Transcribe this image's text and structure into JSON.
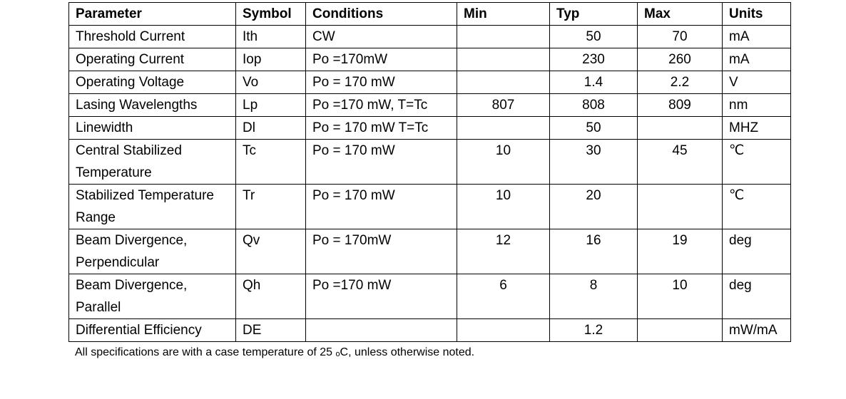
{
  "table": {
    "headers": [
      "Parameter",
      "Symbol",
      "Conditions",
      "Min",
      "Typ",
      "Max",
      "Units"
    ],
    "rows": [
      {
        "parameter": "Threshold Current",
        "symbol": "Ith",
        "conditions": "CW",
        "min": "",
        "typ": "50",
        "max": "70",
        "units": "mA"
      },
      {
        "parameter": "Operating Current",
        "symbol": "Iop",
        "conditions": "Po =170mW",
        "min": "",
        "typ": "230",
        "max": "260",
        "units": "mA"
      },
      {
        "parameter": "Operating Voltage",
        "symbol": "Vo",
        "conditions": "Po = 170 mW",
        "min": "",
        "typ": "1.4",
        "max": "2.2",
        "units": "V"
      },
      {
        "parameter": "Lasing Wavelengths",
        "symbol": "Lp",
        "conditions": "Po =170 mW, T=Tc",
        "min": "807",
        "typ": "808",
        "max": "809",
        "units": "nm"
      },
      {
        "parameter": "Linewidth",
        "symbol": "Dl",
        "conditions": "Po = 170 mW T=Tc",
        "min": "",
        "typ": "50",
        "max": "",
        "units": "MHZ"
      },
      {
        "parameter": "Central Stabilized Temperature",
        "symbol": "Tc",
        "conditions": "Po = 170 mW",
        "min": "10",
        "typ": "30",
        "max": "45",
        "units": "℃"
      },
      {
        "parameter": "Stabilized Temperature Range",
        "symbol": "Tr",
        "conditions": "Po = 170 mW",
        "min": "10",
        "typ": "20",
        "max": "",
        "units": "℃"
      },
      {
        "parameter": "Beam Divergence, Perpendicular",
        "symbol": "Qv",
        "conditions": "Po = 170mW",
        "min": "12",
        "typ": "16",
        "max": "19",
        "units": "deg"
      },
      {
        "parameter": "Beam Divergence, Parallel",
        "symbol": "Qh",
        "conditions": "Po =170 mW",
        "min": "6",
        "typ": "8",
        "max": "10",
        "units": "deg"
      },
      {
        "parameter": "Differential Efficiency",
        "symbol": "DE",
        "conditions": "",
        "min": "",
        "typ": "1.2",
        "max": "",
        "units": "mW/mA"
      }
    ]
  },
  "note": "All specifications are with a case temperature of 25 ₒC, unless otherwise noted."
}
